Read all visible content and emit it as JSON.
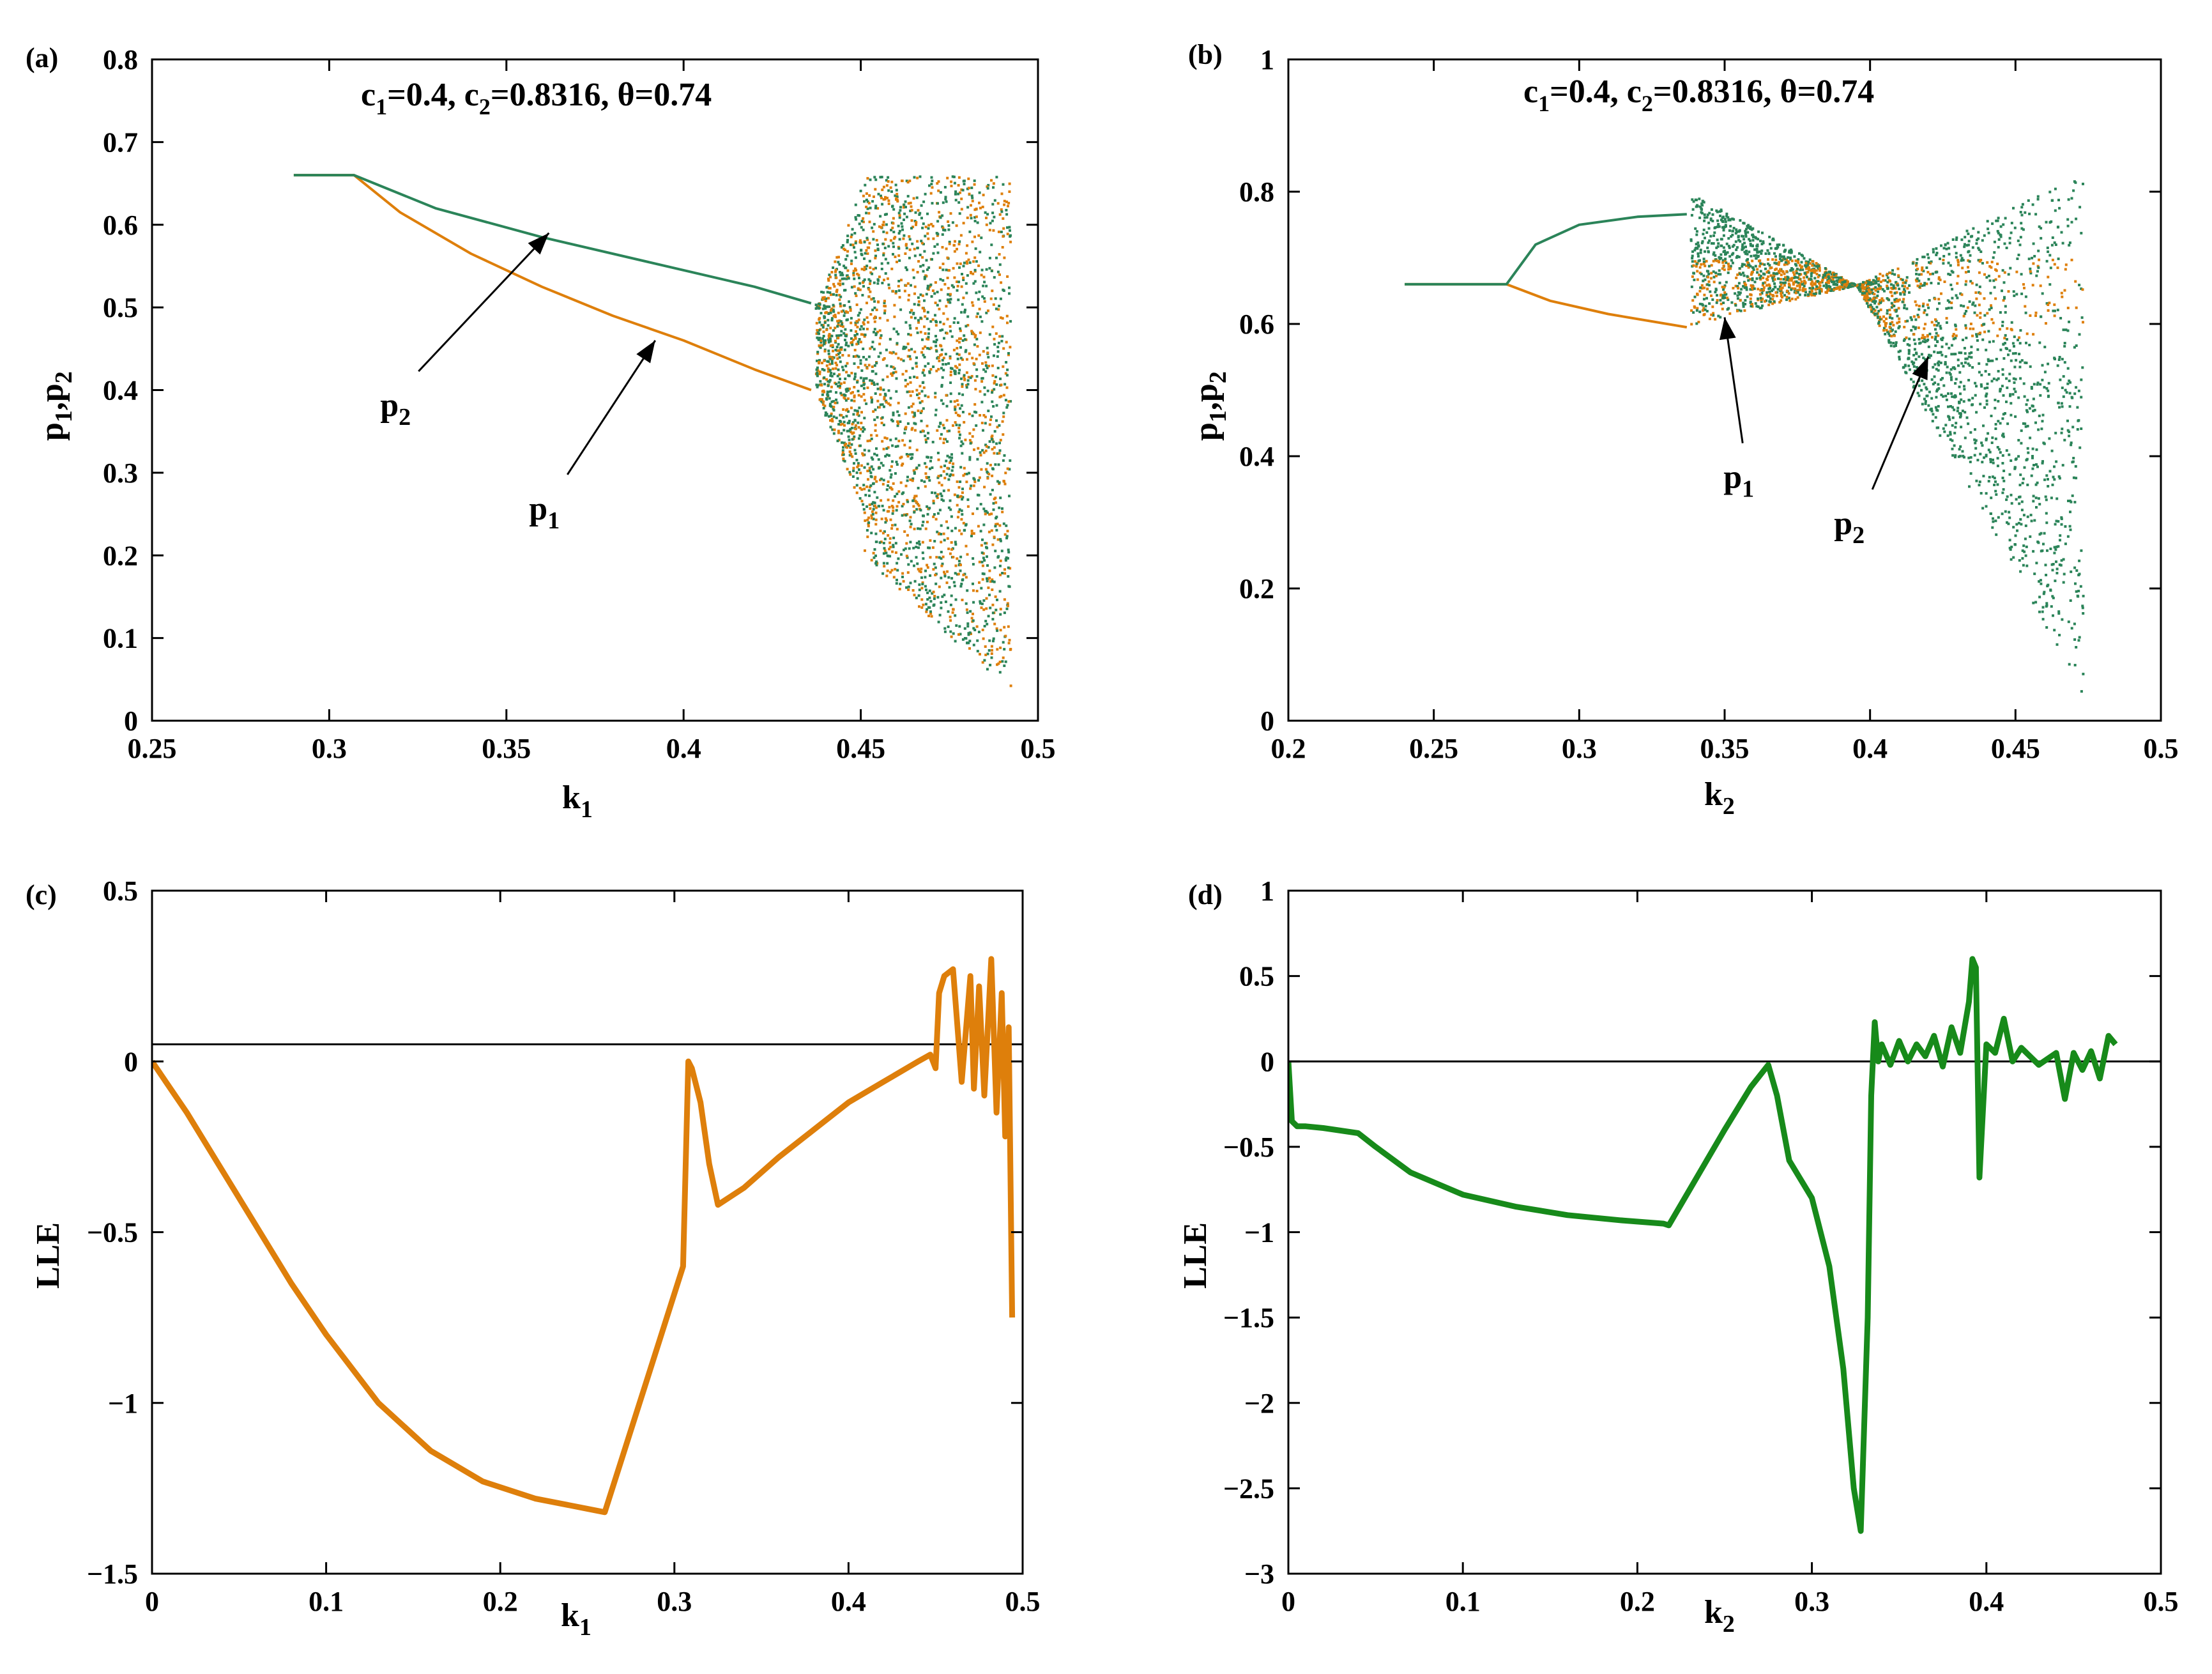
{
  "colors": {
    "orange": "#de7f0b",
    "green": "#2b8459",
    "lle_green": "#178a1a",
    "black": "#000000"
  },
  "chart_data": [
    {
      "id": "a",
      "type": "scatter",
      "label": "(a)",
      "title": "c1=0.4, c2=0.8316, θ=0.74",
      "title_parts": {
        "c": "c",
        "s1": "1",
        "p1": "=0.4, c",
        "s2": "2",
        "p2": "=0.8316, θ=0.74"
      },
      "xlabel": {
        "base": "k",
        "sub": "1"
      },
      "ylabel": {
        "a": "p",
        "s1": "1",
        "m": ",p",
        "s2": "2"
      },
      "xlim": [
        0.25,
        0.5
      ],
      "ylim": [
        0,
        0.8
      ],
      "xticks": [
        "0.25",
        "0.3",
        "0.35",
        "0.4",
        "0.45",
        "0.5"
      ],
      "yticks": [
        "0",
        "0.1",
        "0.2",
        "0.3",
        "0.4",
        "0.5",
        "0.6",
        "0.7",
        "0.8"
      ],
      "series": [
        {
          "name": "p1",
          "color": "orange",
          "x": [
            0.29,
            0.307,
            0.32,
            0.34,
            0.36,
            0.38,
            0.4,
            0.42,
            0.436
          ],
          "y": [
            0.66,
            0.66,
            0.615,
            0.565,
            0.525,
            0.49,
            0.46,
            0.425,
            0.4
          ]
        },
        {
          "name": "p2",
          "color": "green",
          "x": [
            0.29,
            0.307,
            0.33,
            0.36,
            0.39,
            0.42,
            0.436
          ],
          "y": [
            0.66,
            0.66,
            0.62,
            0.585,
            0.555,
            0.525,
            0.505
          ]
        }
      ],
      "chaotic_region": {
        "k_start": 0.437,
        "k_end": 0.492,
        "p_min": 0.03,
        "p_max": 0.66
      },
      "annotations": [
        {
          "text": "p",
          "sub": "2",
          "tx": 0.318,
          "ty": 0.415,
          "ax": 0.362,
          "ay": 0.59
        },
        {
          "text": "p",
          "sub": "1",
          "tx": 0.36,
          "ty": 0.29,
          "ax": 0.392,
          "ay": 0.46
        }
      ]
    },
    {
      "id": "b",
      "type": "scatter",
      "label": "(b)",
      "title": "c1=0.4, c2=0.8316, θ=0.74",
      "title_parts": {
        "c": "c",
        "s1": "1",
        "p1": "=0.4, c",
        "s2": "2",
        "p2": "=0.8316, θ=0.74"
      },
      "xlabel": {
        "base": "k",
        "sub": "2"
      },
      "ylabel": {
        "a": "p",
        "s1": "1",
        "m": ",p",
        "s2": "2"
      },
      "xlim": [
        0.2,
        0.5
      ],
      "ylim": [
        0,
        1
      ],
      "xticks": [
        "0.2",
        "0.25",
        "0.3",
        "0.35",
        "0.4",
        "0.45",
        "0.5"
      ],
      "yticks": [
        "0",
        "0.2",
        "0.4",
        "0.6",
        "0.8",
        "1"
      ],
      "series": [
        {
          "name": "p1",
          "color": "orange",
          "x": [
            0.24,
            0.275,
            0.29,
            0.31,
            0.337
          ],
          "y": [
            0.66,
            0.66,
            0.635,
            0.615,
            0.595
          ]
        },
        {
          "name": "p2",
          "color": "green",
          "x": [
            0.24,
            0.275,
            0.285,
            0.3,
            0.32,
            0.337
          ],
          "y": [
            0.66,
            0.66,
            0.72,
            0.75,
            0.762,
            0.766
          ]
        }
      ],
      "chaotic_region": {
        "k_start": 0.338,
        "k_end": 0.473,
        "p_min": 0.01,
        "p_max": 0.83
      },
      "annotations": [
        {
          "text": "p",
          "sub": "1",
          "tx": 0.354,
          "ty": 0.41,
          "ax": 0.35,
          "ay": 0.61
        },
        {
          "text": "p",
          "sub": "2",
          "tx": 0.392,
          "ty": 0.34,
          "ax": 0.42,
          "ay": 0.55
        }
      ]
    },
    {
      "id": "c",
      "type": "line",
      "label": "(c)",
      "title": "",
      "xlabel": {
        "base": "k",
        "sub": "1"
      },
      "ylabel": "LLE",
      "xlim": [
        0,
        0.5
      ],
      "ylim": [
        -1.5,
        0.5
      ],
      "xticks": [
        "0",
        "0.1",
        "0.2",
        "0.3",
        "0.4",
        "0.5"
      ],
      "yticks": [
        "−1.5",
        "−1",
        "−0.5",
        "0",
        "0.5"
      ],
      "reference_line": [
        0.05,
        0.05
      ],
      "series": [
        {
          "name": "LLE",
          "color": "orange",
          "x": [
            0,
            0.02,
            0.05,
            0.08,
            0.1,
            0.13,
            0.16,
            0.19,
            0.22,
            0.25,
            0.26,
            0.28,
            0.305,
            0.308,
            0.31,
            0.315,
            0.32,
            0.325,
            0.34,
            0.36,
            0.38,
            0.4,
            0.42,
            0.44,
            0.447,
            0.45,
            0.452,
            0.455,
            0.46,
            0.465,
            0.47,
            0.472,
            0.475,
            0.478,
            0.482,
            0.485,
            0.488,
            0.49,
            0.492,
            0.494
          ],
          "y": [
            0,
            -0.15,
            -0.4,
            -0.65,
            -0.8,
            -1.0,
            -1.14,
            -1.23,
            -1.28,
            -1.31,
            -1.32,
            -1.0,
            -0.6,
            0.0,
            -0.02,
            -0.12,
            -0.3,
            -0.42,
            -0.37,
            -0.28,
            -0.2,
            -0.12,
            -0.06,
            0.0,
            0.02,
            -0.02,
            0.2,
            0.25,
            0.27,
            -0.06,
            0.25,
            -0.08,
            0.22,
            -0.1,
            0.3,
            -0.15,
            0.2,
            -0.22,
            0.1,
            -0.75
          ]
        }
      ]
    },
    {
      "id": "d",
      "type": "line",
      "label": "(d)",
      "title": "",
      "xlabel": {
        "base": "k",
        "sub": "2"
      },
      "ylabel": "LLE",
      "xlim": [
        0,
        0.5
      ],
      "ylim": [
        -3,
        1
      ],
      "xticks": [
        "0",
        "0.1",
        "0.2",
        "0.3",
        "0.4",
        "0.5"
      ],
      "yticks": [
        "−3",
        "−2.5",
        "−2",
        "−1.5",
        "−1",
        "−0.5",
        "0",
        "0.5",
        "1"
      ],
      "reference_line": [
        0,
        0
      ],
      "series": [
        {
          "name": "LLE",
          "color": "lle_green",
          "x": [
            0,
            0.002,
            0.005,
            0.01,
            0.02,
            0.04,
            0.05,
            0.07,
            0.1,
            0.13,
            0.16,
            0.19,
            0.215,
            0.218,
            0.23,
            0.25,
            0.265,
            0.275,
            0.28,
            0.287,
            0.3,
            0.31,
            0.318,
            0.324,
            0.328,
            0.332,
            0.334,
            0.336,
            0.338,
            0.34,
            0.345,
            0.35,
            0.355,
            0.36,
            0.365,
            0.37,
            0.375,
            0.38,
            0.385,
            0.39,
            0.392,
            0.394,
            0.396,
            0.4,
            0.405,
            0.41,
            0.415,
            0.42,
            0.43,
            0.44,
            0.445,
            0.45,
            0.455,
            0.46,
            0.465,
            0.47,
            0.474
          ],
          "y": [
            0,
            -0.35,
            -0.38,
            -0.38,
            -0.39,
            -0.42,
            -0.5,
            -0.65,
            -0.78,
            -0.85,
            -0.9,
            -0.93,
            -0.95,
            -0.96,
            -0.75,
            -0.4,
            -0.15,
            -0.02,
            -0.2,
            -0.58,
            -0.8,
            -1.2,
            -1.8,
            -2.5,
            -2.75,
            -1.5,
            -0.2,
            0.23,
            0.0,
            0.1,
            -0.02,
            0.12,
            0.0,
            0.1,
            0.03,
            0.15,
            -0.03,
            0.2,
            0.05,
            0.35,
            0.6,
            0.55,
            -0.68,
            0.1,
            0.05,
            0.25,
            0.0,
            0.08,
            -0.02,
            0.05,
            -0.22,
            0.05,
            -0.05,
            0.06,
            -0.1,
            0.15,
            0.1
          ]
        }
      ]
    }
  ]
}
